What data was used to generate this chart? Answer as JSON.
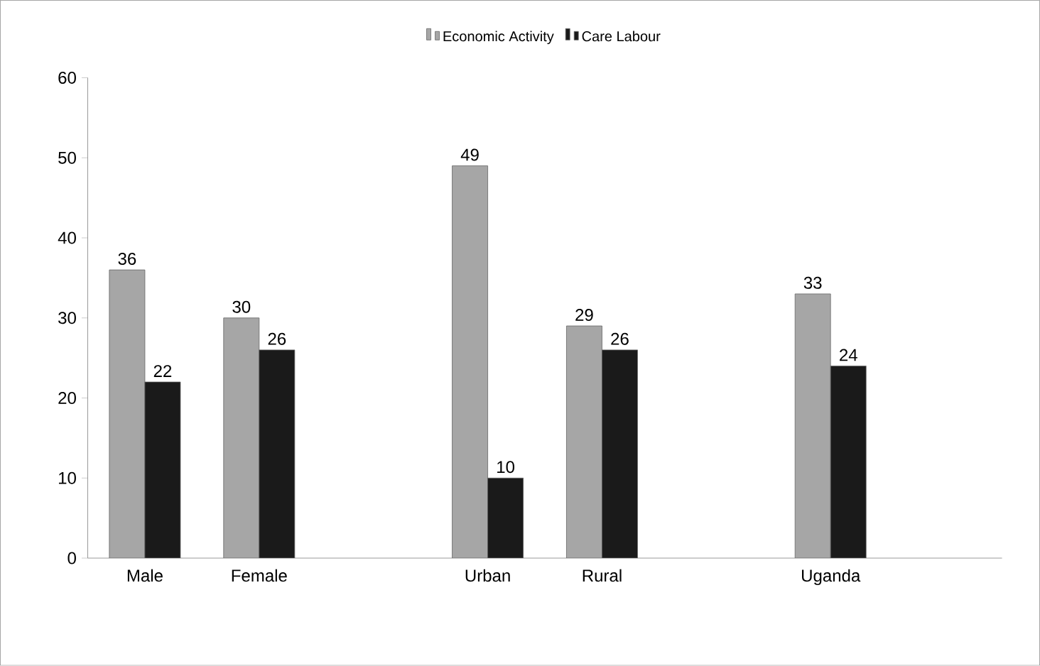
{
  "chart_data": {
    "type": "bar",
    "categories": [
      "Male",
      "Female",
      null,
      "Urban",
      "Rural",
      null,
      "Uganda",
      null
    ],
    "series": [
      {
        "name": "Economic Activity",
        "color": "#a6a6a6",
        "values": [
          36,
          30,
          null,
          49,
          29,
          null,
          33,
          null
        ]
      },
      {
        "name": "Care Labour",
        "color": "#1a1a1a",
        "values": [
          22,
          26,
          null,
          10,
          26,
          null,
          24,
          null
        ]
      }
    ],
    "ylim": [
      0,
      60
    ],
    "yticks": [
      0,
      10,
      20,
      30,
      40,
      50,
      60
    ],
    "data_labels": true,
    "legend": "top",
    "grid": false
  }
}
